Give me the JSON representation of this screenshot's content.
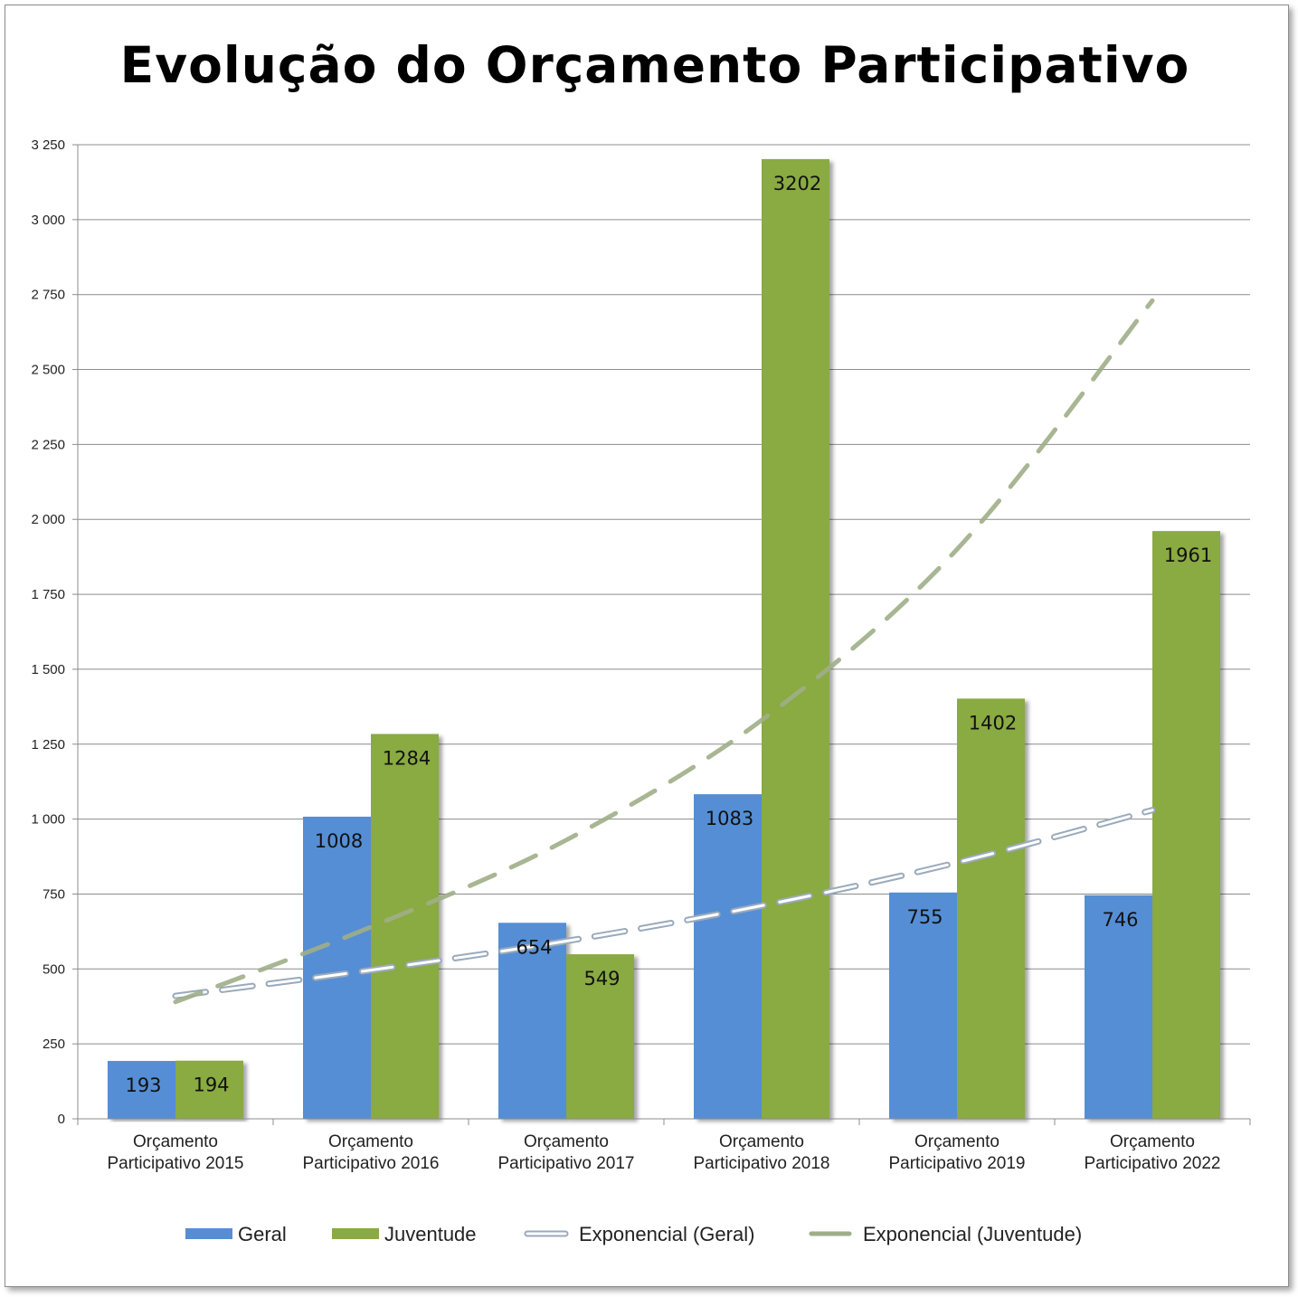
{
  "chart_data": {
    "type": "bar",
    "title": "Evolução do Orçamento Participativo",
    "categories": [
      [
        "Orçamento",
        "Participativo 2015"
      ],
      [
        "Orçamento",
        "Participativo 2016"
      ],
      [
        "Orçamento",
        "Participativo 2017"
      ],
      [
        "Orçamento",
        "Participativo 2018"
      ],
      [
        "Orçamento",
        "Participativo 2019"
      ],
      [
        "Orçamento",
        "Participativo 2022"
      ]
    ],
    "series": [
      {
        "name": "Geral",
        "values": [
          193,
          1008,
          654,
          1083,
          755,
          746
        ],
        "color": "#558ed5",
        "labels": [
          "193",
          "1008",
          "654",
          "1083",
          "755",
          "746"
        ]
      },
      {
        "name": "Juventude",
        "values": [
          194,
          1284,
          549,
          3202,
          1402,
          1961
        ],
        "color": "#8aaa43",
        "labels": [
          "194",
          "1284",
          "549",
          "3202",
          "1402",
          "1961"
        ]
      }
    ],
    "trendlines": [
      {
        "name": "Exponencial (Geral)",
        "values": [
          410,
          496,
          593,
          711,
          855,
          1030
        ],
        "color": "#9aaabb"
      },
      {
        "name": "Exponencial (Juventude)",
        "values": [
          390,
          640,
          930,
          1330,
          1900,
          2730
        ],
        "color": "#9eae87"
      }
    ],
    "ylim": [
      0,
      3250
    ],
    "yticks": [
      0,
      250,
      500,
      750,
      1000,
      1250,
      1500,
      1750,
      2000,
      2250,
      2500,
      2750,
      3000,
      3250
    ],
    "ytick_labels": [
      "0",
      "250",
      "500",
      "750",
      "1 000",
      "1 250",
      "1 500",
      "1 750",
      "2 000",
      "2 250",
      "2 500",
      "2 750",
      "3 000",
      "3 250"
    ],
    "grid": true,
    "legend_position": "bottom"
  }
}
